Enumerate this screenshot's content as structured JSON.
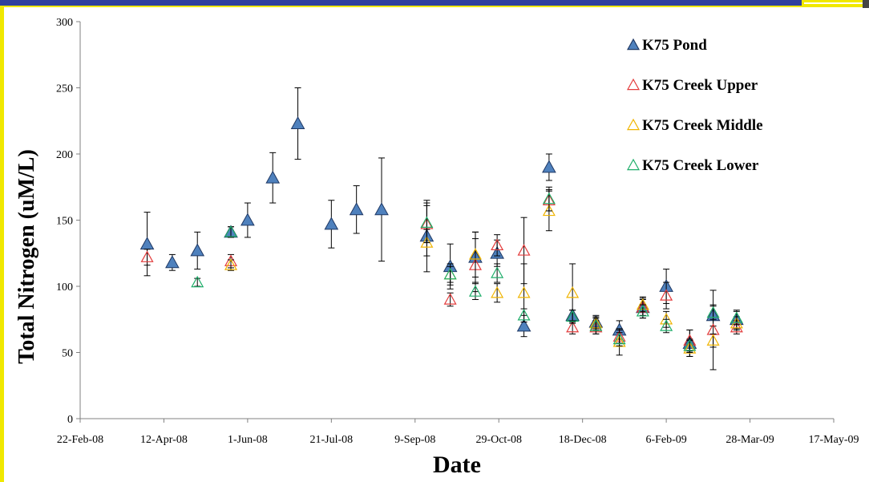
{
  "chart_data": {
    "type": "scatter",
    "title": "",
    "xlabel": "Date",
    "ylabel": "Total Nitrogen (uM/L)",
    "ylim": [
      0,
      300
    ],
    "xlim": [
      "2008-02-22",
      "2009-05-17"
    ],
    "yticks": [
      0,
      50,
      100,
      150,
      200,
      250,
      300
    ],
    "xticks": [
      "22-Feb-08",
      "12-Apr-08",
      "1-Jun-08",
      "21-Jul-08",
      "9-Sep-08",
      "29-Oct-08",
      "18-Dec-08",
      "6-Feb-09",
      "28-Mar-09",
      "17-May-09"
    ],
    "grid": false,
    "legend_position": "top-right",
    "error_bars": true,
    "series": [
      {
        "name": "K75 Pond",
        "marker": "filled-triangle",
        "color": "#4f81bd",
        "points": [
          {
            "x": "2008-04-02",
            "y": 132,
            "err": 24
          },
          {
            "x": "2008-04-17",
            "y": 118,
            "err": 6
          },
          {
            "x": "2008-05-02",
            "y": 127,
            "err": 14
          },
          {
            "x": "2008-05-22",
            "y": 141,
            "err": 4
          },
          {
            "x": "2008-06-01",
            "y": 150,
            "err": 13
          },
          {
            "x": "2008-06-16",
            "y": 182,
            "err": 19
          },
          {
            "x": "2008-07-01",
            "y": 223,
            "err": 27
          },
          {
            "x": "2008-07-21",
            "y": 147,
            "err": 18
          },
          {
            "x": "2008-08-05",
            "y": 158,
            "err": 18
          },
          {
            "x": "2008-08-20",
            "y": 158,
            "err": 39
          },
          {
            "x": "2008-09-16",
            "y": 138,
            "err": 27
          },
          {
            "x": "2008-09-30",
            "y": 115,
            "err": 17
          },
          {
            "x": "2008-10-15",
            "y": 122,
            "err": 19
          },
          {
            "x": "2008-10-28",
            "y": 125,
            "err": 10
          },
          {
            "x": "2008-11-13",
            "y": 70,
            "err": 8
          },
          {
            "x": "2008-11-28",
            "y": 190,
            "err": 10
          },
          {
            "x": "2008-12-12",
            "y": 78,
            "err": 4
          },
          {
            "x": "2008-12-26",
            "y": 73,
            "err": 5
          },
          {
            "x": "2009-01-09",
            "y": 67,
            "err": 7
          },
          {
            "x": "2009-01-23",
            "y": 84,
            "err": 8
          },
          {
            "x": "2009-02-06",
            "y": 100,
            "err": 13
          },
          {
            "x": "2009-02-20",
            "y": 57,
            "err": 10
          },
          {
            "x": "2009-03-06",
            "y": 78,
            "err": 8
          },
          {
            "x": "2009-03-20",
            "y": 75,
            "err": 7
          }
        ]
      },
      {
        "name": "K75 Creek Upper",
        "marker": "open-triangle",
        "color": "#e33b3b",
        "points": [
          {
            "x": "2008-04-02",
            "y": 122,
            "err": 6
          },
          {
            "x": "2008-05-22",
            "y": 119,
            "err": 5
          },
          {
            "x": "2008-09-16",
            "y": 147,
            "err": 14
          },
          {
            "x": "2008-09-30",
            "y": 90,
            "err": 5
          },
          {
            "x": "2008-10-15",
            "y": 116,
            "err": 20
          },
          {
            "x": "2008-10-28",
            "y": 131,
            "err": 8
          },
          {
            "x": "2008-11-13",
            "y": 127,
            "err": 25
          },
          {
            "x": "2008-11-28",
            "y": 165,
            "err": 8
          },
          {
            "x": "2008-12-12",
            "y": 69,
            "err": 5
          },
          {
            "x": "2008-12-26",
            "y": 69,
            "err": 5
          },
          {
            "x": "2009-01-09",
            "y": 62,
            "err": 5
          },
          {
            "x": "2009-01-23",
            "y": 84,
            "err": 6
          },
          {
            "x": "2009-02-06",
            "y": 93,
            "err": 10
          },
          {
            "x": "2009-02-20",
            "y": 59,
            "err": 8
          },
          {
            "x": "2009-03-06",
            "y": 67,
            "err": 30
          },
          {
            "x": "2009-03-20",
            "y": 69,
            "err": 5
          }
        ]
      },
      {
        "name": "K75 Creek Middle",
        "marker": "open-triangle",
        "color": "#f0b400",
        "points": [
          {
            "x": "2008-05-22",
            "y": 116,
            "err": 4
          },
          {
            "x": "2008-09-16",
            "y": 133,
            "err": 10
          },
          {
            "x": "2008-09-30",
            "y": 109,
            "err": 8
          },
          {
            "x": "2008-10-15",
            "y": 124,
            "err": 17
          },
          {
            "x": "2008-10-28",
            "y": 95,
            "err": 7
          },
          {
            "x": "2008-11-13",
            "y": 95,
            "err": 22
          },
          {
            "x": "2008-11-28",
            "y": 157,
            "err": 15
          },
          {
            "x": "2008-12-12",
            "y": 95,
            "err": 22
          },
          {
            "x": "2008-12-26",
            "y": 72,
            "err": 5
          },
          {
            "x": "2009-01-09",
            "y": 58,
            "err": 10
          },
          {
            "x": "2009-01-23",
            "y": 86,
            "err": 5
          },
          {
            "x": "2009-02-06",
            "y": 75,
            "err": 6
          },
          {
            "x": "2009-02-20",
            "y": 53,
            "err": 6
          },
          {
            "x": "2009-03-06",
            "y": 59,
            "err": 5
          },
          {
            "x": "2009-03-20",
            "y": 72,
            "err": 5
          }
        ]
      },
      {
        "name": "K75 Creek Lower",
        "marker": "open-triangle",
        "color": "#1fae6a",
        "points": [
          {
            "x": "2008-05-02",
            "y": 103,
            "err": 3
          },
          {
            "x": "2008-05-22",
            "y": 141,
            "err": 4
          },
          {
            "x": "2008-09-16",
            "y": 148,
            "err": 15
          },
          {
            "x": "2008-09-30",
            "y": 109,
            "err": 6
          },
          {
            "x": "2008-10-15",
            "y": 96,
            "err": 6
          },
          {
            "x": "2008-10-28",
            "y": 110,
            "err": 7
          },
          {
            "x": "2008-11-13",
            "y": 78,
            "err": 5
          },
          {
            "x": "2008-11-28",
            "y": 166,
            "err": 9
          },
          {
            "x": "2008-12-12",
            "y": 77,
            "err": 5
          },
          {
            "x": "2008-12-26",
            "y": 70,
            "err": 6
          },
          {
            "x": "2009-01-09",
            "y": 60,
            "err": 5
          },
          {
            "x": "2009-01-23",
            "y": 81,
            "err": 5
          },
          {
            "x": "2009-02-06",
            "y": 70,
            "err": 5
          },
          {
            "x": "2009-02-20",
            "y": 55,
            "err": 5
          },
          {
            "x": "2009-03-06",
            "y": 80,
            "err": 5
          },
          {
            "x": "2009-03-20",
            "y": 76,
            "err": 5
          }
        ]
      }
    ]
  }
}
